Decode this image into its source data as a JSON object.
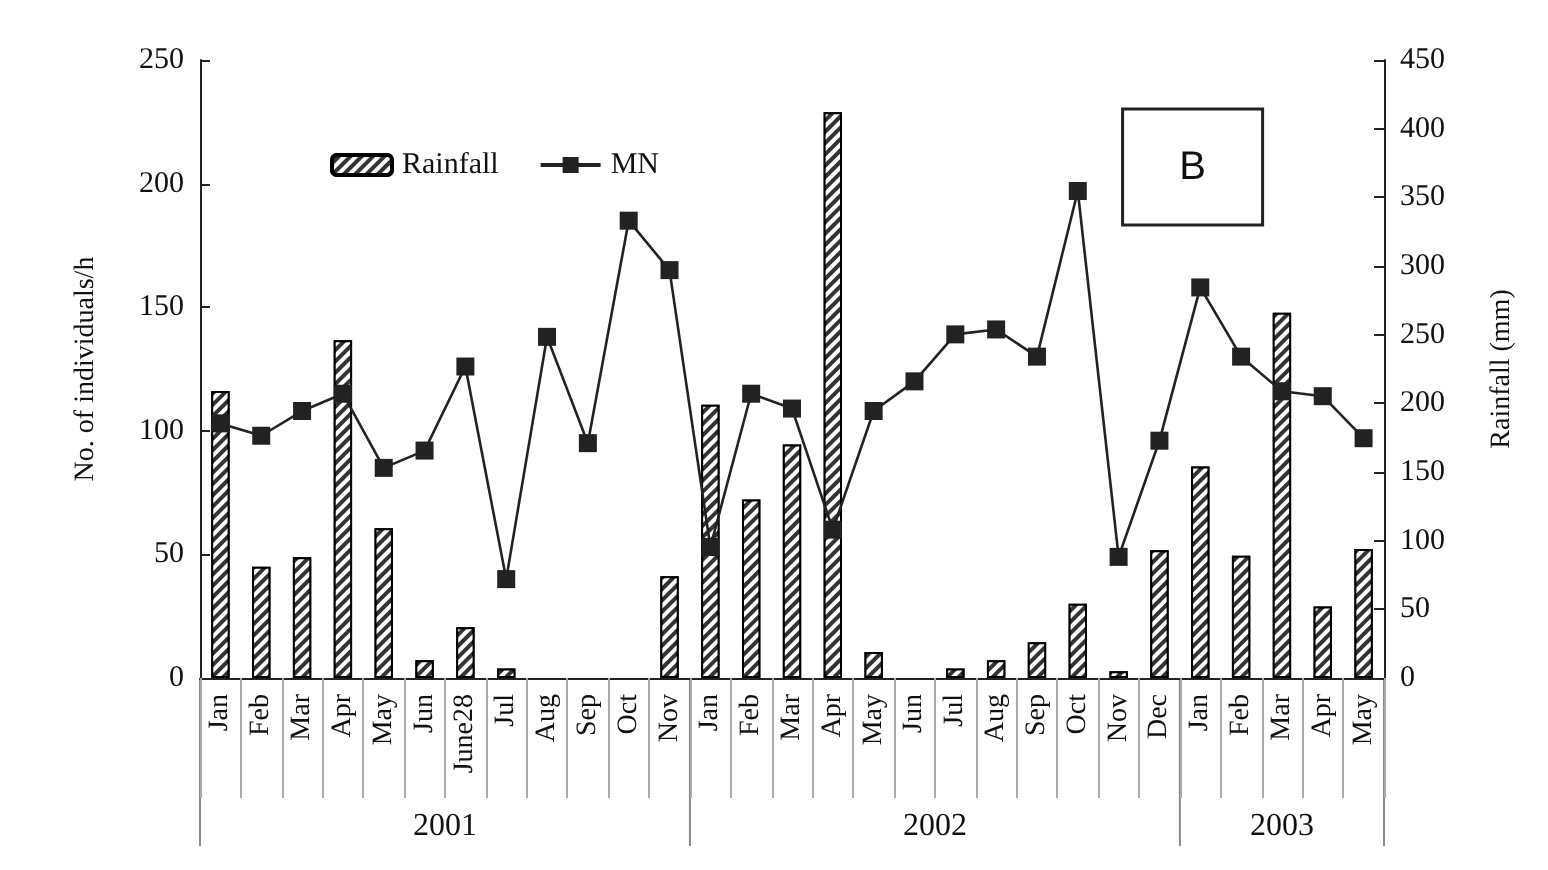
{
  "chart_data": {
    "type": "bar",
    "ylabel": "No. of individuals/h",
    "y2label": "Rainfall (mm)",
    "categories": [
      "Jan",
      "Feb",
      "Mar",
      "Apr",
      "May",
      "Jun",
      "June28",
      "Jul",
      "Aug",
      "Sep",
      "Oct",
      "Nov",
      "Jan",
      "Feb",
      "Mar",
      "Apr",
      "May",
      "Jun",
      "Jul",
      "Aug",
      "Sep",
      "Oct",
      "Nov",
      "Dec",
      "Jan",
      "Feb",
      "Mar",
      "Apr",
      "May"
    ],
    "series": [
      {
        "name": "Rainfall",
        "axis": "y2",
        "color": "#333333",
        "values": [
          209,
          81,
          88,
          246,
          109,
          13,
          37,
          7,
          0,
          0,
          0,
          74,
          199,
          130,
          170,
          412,
          19,
          0,
          7,
          13,
          26,
          54,
          5,
          93,
          154,
          89,
          266,
          52,
          94
        ]
      },
      {
        "name": "MN",
        "type": "line",
        "color": "#222222",
        "marker": "square",
        "line_style": "solid",
        "values": [
          103,
          98,
          108,
          115,
          85,
          92,
          126,
          40,
          138,
          95,
          185,
          165,
          53,
          115,
          109,
          60,
          108,
          120,
          139,
          141,
          130,
          197,
          49,
          96,
          158,
          130,
          116,
          114,
          97
        ]
      }
    ],
    "ylim": [
      0,
      250
    ],
    "yticks": [
      0,
      50,
      100,
      150,
      200,
      250
    ],
    "y2lim": [
      0,
      450
    ],
    "y2ticks": [
      0,
      50,
      100,
      150,
      200,
      250,
      300,
      350,
      400,
      450
    ],
    "annotations": [
      "B",
      "2001",
      "2002",
      "2003"
    ],
    "legend": "top left",
    "grid": false
  }
}
